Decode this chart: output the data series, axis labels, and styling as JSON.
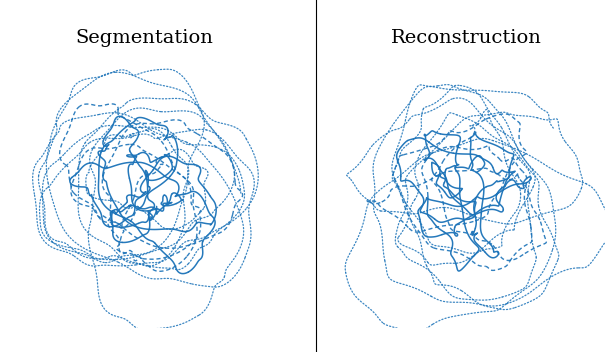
{
  "title_left": "Segmentation",
  "title_right": "Reconstruction",
  "line_color": "#1a72b8",
  "bg_color": "#ffffff",
  "divider_color": "#000000",
  "fig_width": 6.08,
  "fig_height": 3.52,
  "dpi": 100,
  "title_fontsize": 14
}
